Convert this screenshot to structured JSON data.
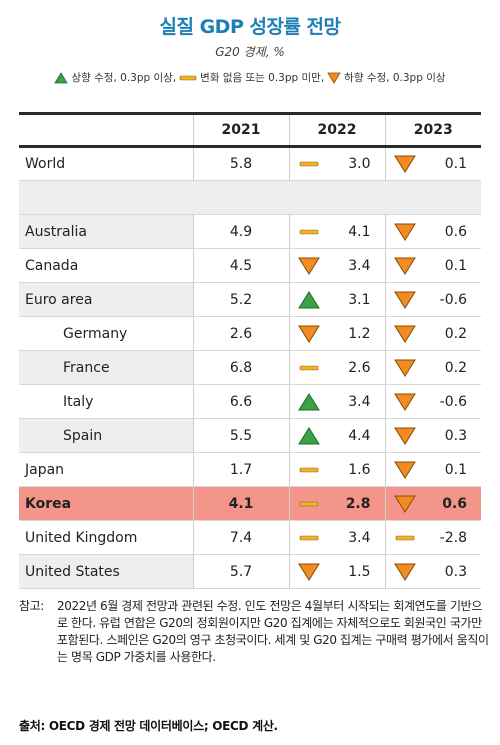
{
  "title": "실질 GDP 성장률 전망",
  "subtitle": "G20 경제, %",
  "legend": [
    {
      "kind": "up",
      "label": "상향 수정, 0.3pp 이상,"
    },
    {
      "kind": "flat",
      "label": "변화 없음 또는 0.3pp 미만,"
    },
    {
      "kind": "down",
      "label": "하향 수정, 0.3pp 이상"
    }
  ],
  "colors": {
    "up": "#3aa345",
    "flat": "#f0b323",
    "down": "#f28c1f",
    "korea_row": "#f3958a",
    "title": "#1c7fb6"
  },
  "chart_data": {
    "type": "table",
    "title": "실질 GDP 성장률 전망",
    "subtitle": "G20 경제, %",
    "columns": [
      "2021",
      "2022",
      "2023"
    ],
    "rows": [
      {
        "name": "World",
        "indent": false,
        "v2021": "5.8",
        "i2022": "flat",
        "v2022": "3.0",
        "i2023": "down",
        "v2023": "0.1"
      },
      {
        "blank": true
      },
      {
        "name": "Australia",
        "indent": false,
        "v2021": "4.9",
        "i2022": "flat",
        "v2022": "4.1",
        "i2023": "down",
        "v2023": "0.6"
      },
      {
        "name": "Canada",
        "indent": false,
        "v2021": "4.5",
        "i2022": "down",
        "v2022": "3.4",
        "i2023": "down",
        "v2023": "0.1"
      },
      {
        "name": "Euro area",
        "indent": false,
        "v2021": "5.2",
        "i2022": "up",
        "v2022": "3.1",
        "i2023": "down",
        "v2023": "-0.6"
      },
      {
        "name": "Germany",
        "indent": true,
        "v2021": "2.6",
        "i2022": "down",
        "v2022": "1.2",
        "i2023": "down",
        "v2023": "0.2"
      },
      {
        "name": "France",
        "indent": true,
        "v2021": "6.8",
        "i2022": "flat",
        "v2022": "2.6",
        "i2023": "down",
        "v2023": "0.2"
      },
      {
        "name": "Italy",
        "indent": true,
        "v2021": "6.6",
        "i2022": "up",
        "v2022": "3.4",
        "i2023": "down",
        "v2023": "-0.6"
      },
      {
        "name": "Spain",
        "indent": true,
        "v2021": "5.5",
        "i2022": "up",
        "v2022": "4.4",
        "i2023": "down",
        "v2023": "0.3"
      },
      {
        "name": "Japan",
        "indent": false,
        "v2021": "1.7",
        "i2022": "flat",
        "v2022": "1.6",
        "i2023": "down",
        "v2023": "0.1"
      },
      {
        "name": "Korea",
        "indent": false,
        "highlight": true,
        "v2021": "4.1",
        "i2022": "flat",
        "v2022": "2.8",
        "i2023": "down",
        "v2023": "0.6"
      },
      {
        "name": "United Kingdom",
        "indent": false,
        "v2021": "7.4",
        "i2022": "flat",
        "v2022": "3.4",
        "i2023": "flat",
        "v2023": "-2.8"
      },
      {
        "name": "United States",
        "indent": false,
        "v2021": "5.7",
        "i2022": "down",
        "v2022": "1.5",
        "i2023": "down",
        "v2023": "0.3"
      }
    ]
  },
  "note_label": "참고:",
  "note_text": "2022년 6월 경제 전망과 관련된 수정. 인도 전망은 4월부터 시작되는 회계연도를 기반으로 한다. 유럽 연합은 G20의 정회원이지만 G20 집계에는 자체적으로도 회원국인 국가만 포함된다. 스페인은 G20의 영구 초청국이다. 세계 및 G20 집계는 구매력 평가에서 움직이는 명목 GDP 가중치를 사용한다.",
  "source": "출처: OECD 경제 전망 데이터베이스; OECD 계산."
}
